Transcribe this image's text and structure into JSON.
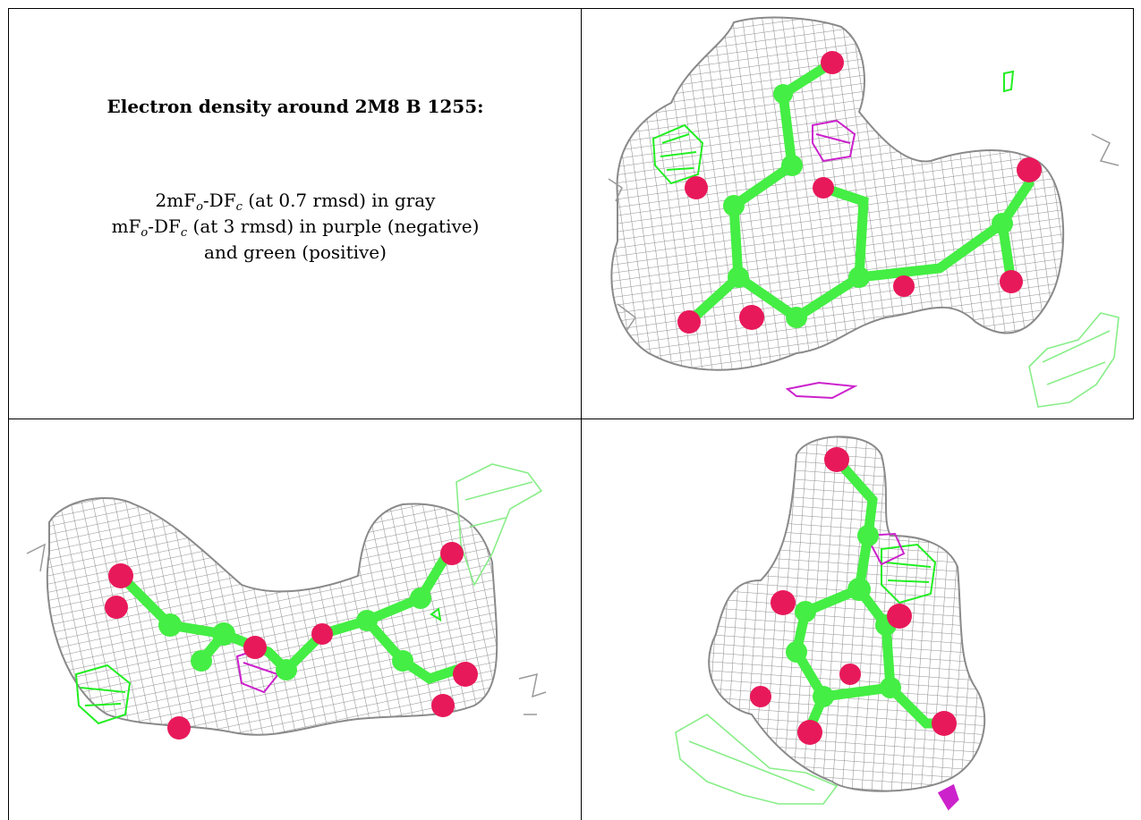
{
  "caption": {
    "title": "Electron density around 2M8 B 1255:",
    "line1": {
      "pre": "2mF",
      "sub1": "o",
      "mid": "-DF",
      "sub2": "c",
      "post": " (at 0.7 rmsd) in gray"
    },
    "line2": {
      "pre": "mF",
      "sub1": "o",
      "mid": "-DF",
      "sub2": "c",
      "post": " (at 3 rmsd) in purple (negative)"
    },
    "line3": "and green (positive)"
  },
  "colors": {
    "mesh_2fofc": "#9a9a9a",
    "fofc_negative": "#cc22cc",
    "fofc_positive": "#22ee22",
    "fofc_positive_faint": "#88ee88",
    "carbon": "#44ee44",
    "oxygen": "#e8195a"
  },
  "panels": [
    {
      "name": "view-top-right"
    },
    {
      "name": "view-bottom-left"
    },
    {
      "name": "view-bottom-right"
    }
  ]
}
